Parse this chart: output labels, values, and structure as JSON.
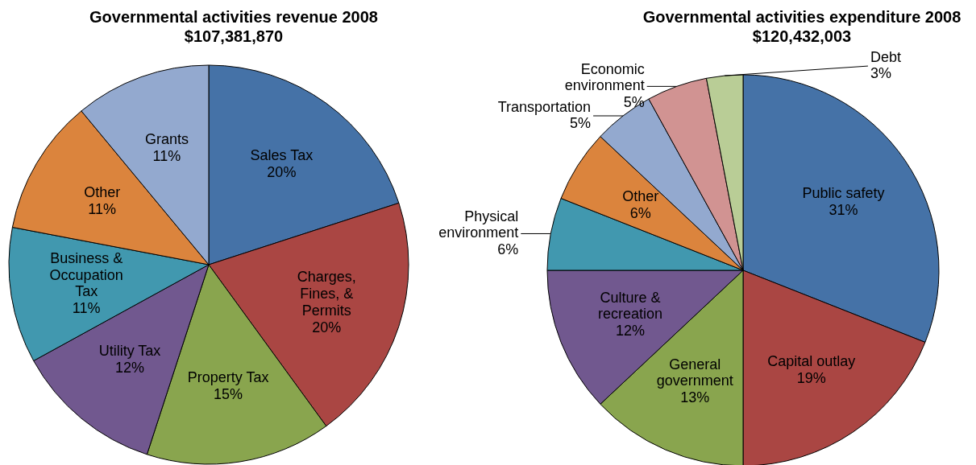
{
  "chart_data": [
    {
      "type": "pie",
      "title": "Governmental activities revenue 2008",
      "subtitle": "$107,381,870",
      "categories": [
        "Sales Tax",
        "Charges,\nFines, &\nPermits",
        "Property Tax",
        "Utility Tax",
        "Business &\nOccupation\nTax",
        "Other",
        "Grants"
      ],
      "values": [
        20,
        20,
        15,
        12,
        11,
        11,
        11
      ],
      "value_labels": [
        "20%",
        "20%",
        "15%",
        "12%",
        "11%",
        "11%",
        "11%"
      ],
      "colors": [
        "#4572a7",
        "#aa4643",
        "#89a54e",
        "#71588f",
        "#4198af",
        "#db843d",
        "#93a9cf"
      ]
    },
    {
      "type": "pie",
      "title": "Governmental activities expenditure 2008",
      "subtitle": "$120,432,003",
      "categories": [
        "Public safety",
        "Capital outlay",
        "General\ngovernment",
        "Culture &\nrecreation",
        "Physical\nenvironment",
        "Other",
        "Transportation",
        "Economic\nenvironment",
        "Debt"
      ],
      "values": [
        31,
        19,
        13,
        12,
        6,
        6,
        5,
        5,
        3
      ],
      "value_labels": [
        "31%",
        "19%",
        "13%",
        "12%",
        "6%",
        "6%",
        "5%",
        "5%",
        "3%"
      ],
      "colors": [
        "#4572a7",
        "#aa4643",
        "#89a54e",
        "#71588f",
        "#4198af",
        "#db843d",
        "#93a9cf",
        "#d19392",
        "#b9cd96"
      ]
    }
  ]
}
